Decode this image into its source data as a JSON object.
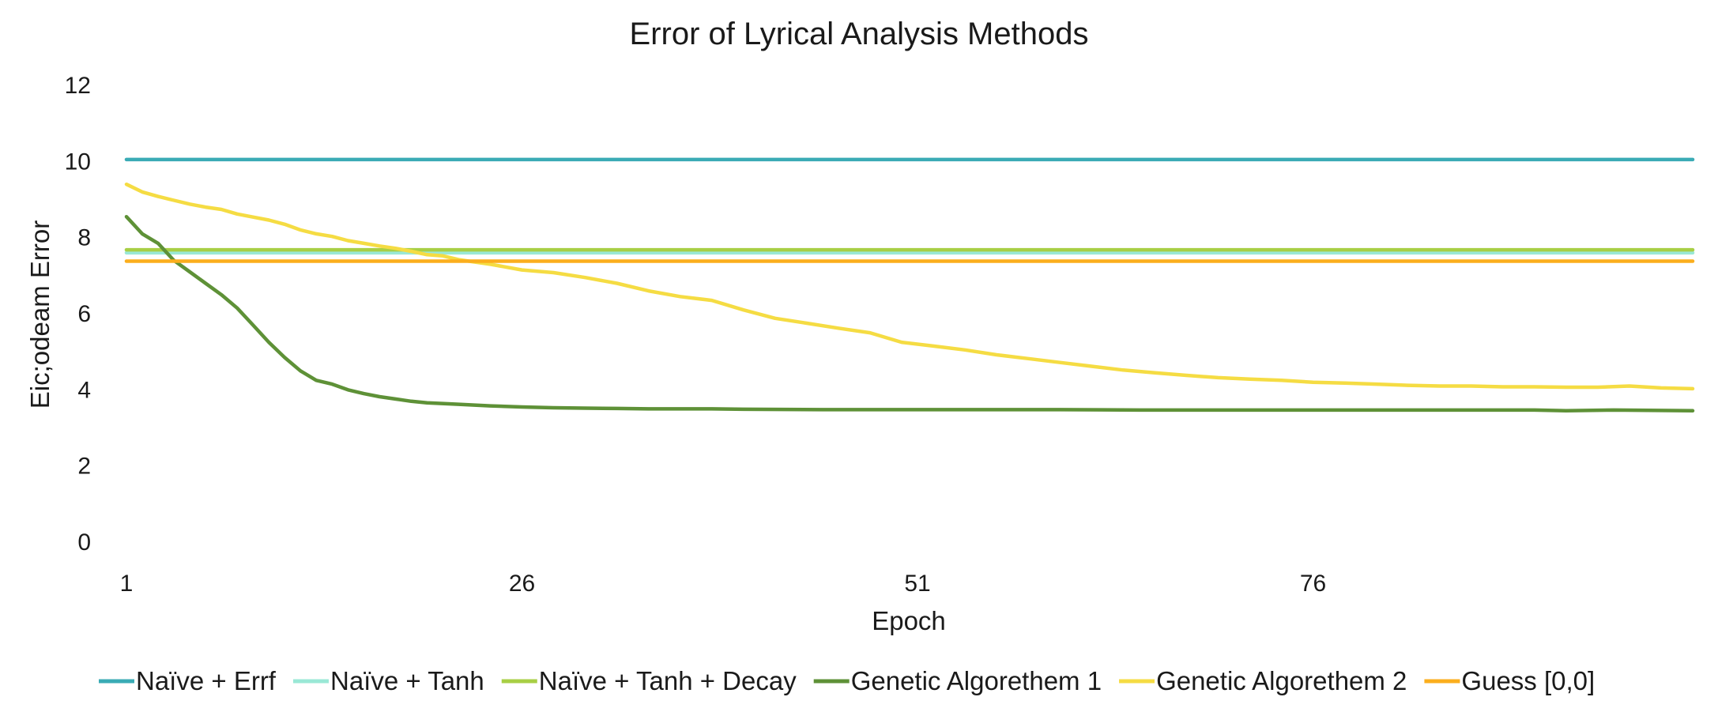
{
  "chart_data": {
    "type": "line",
    "title": "Error of Lyrical Analysis Methods",
    "xlabel": "Epoch",
    "ylabel": "Eic;odeam Error",
    "xlim": [
      1,
      100
    ],
    "ylim": [
      0,
      12
    ],
    "x_ticks": [
      1,
      26,
      51,
      76
    ],
    "y_ticks": [
      0,
      2,
      4,
      6,
      8,
      10,
      12
    ],
    "grid": false,
    "legend_position": "bottom",
    "series": [
      {
        "name": "Naïve + Errf",
        "color": "#3aabb5",
        "x": [
          1,
          100
        ],
        "y": [
          10.05,
          10.05
        ]
      },
      {
        "name": "Naïve + Tanh",
        "color": "#9ae8d6",
        "x": [
          1,
          100
        ],
        "y": [
          7.6,
          7.6
        ]
      },
      {
        "name": "Naïve + Tanh + Decay",
        "color": "#a8cf45",
        "x": [
          1,
          100
        ],
        "y": [
          7.68,
          7.68
        ]
      },
      {
        "name": "Genetic Algorethem 1",
        "color": "#5e9137",
        "x": [
          1,
          2,
          3,
          4,
          5,
          6,
          7,
          8,
          9,
          10,
          11,
          12,
          13,
          14,
          15,
          16,
          17,
          18,
          19,
          20,
          22,
          24,
          26,
          28,
          30,
          32,
          34,
          36,
          38,
          40,
          45,
          50,
          55,
          60,
          65,
          70,
          75,
          80,
          85,
          90,
          92,
          95,
          100
        ],
        "y": [
          8.55,
          8.1,
          7.85,
          7.4,
          7.1,
          6.8,
          6.5,
          6.15,
          5.7,
          5.25,
          4.85,
          4.5,
          4.25,
          4.15,
          4.0,
          3.9,
          3.82,
          3.76,
          3.7,
          3.66,
          3.62,
          3.58,
          3.55,
          3.53,
          3.52,
          3.51,
          3.5,
          3.5,
          3.5,
          3.49,
          3.48,
          3.48,
          3.48,
          3.48,
          3.47,
          3.47,
          3.47,
          3.47,
          3.47,
          3.47,
          3.45,
          3.47,
          3.45
        ]
      },
      {
        "name": "Genetic Algorethem 2",
        "color": "#f5dc43",
        "x": [
          1,
          2,
          3,
          4,
          5,
          6,
          7,
          8,
          9,
          10,
          11,
          12,
          13,
          14,
          15,
          16,
          17,
          18,
          19,
          20,
          21,
          22,
          24,
          26,
          28,
          30,
          32,
          34,
          36,
          38,
          40,
          42,
          44,
          46,
          48,
          50,
          52,
          54,
          56,
          58,
          60,
          62,
          64,
          66,
          68,
          70,
          72,
          74,
          76,
          78,
          80,
          82,
          84,
          86,
          88,
          90,
          92,
          94,
          96,
          98,
          100
        ],
        "y": [
          9.4,
          9.2,
          9.08,
          8.98,
          8.88,
          8.8,
          8.74,
          8.62,
          8.54,
          8.46,
          8.35,
          8.2,
          8.1,
          8.03,
          7.92,
          7.85,
          7.78,
          7.72,
          7.64,
          7.55,
          7.52,
          7.42,
          7.3,
          7.15,
          7.08,
          6.95,
          6.8,
          6.6,
          6.45,
          6.35,
          6.1,
          5.88,
          5.75,
          5.62,
          5.5,
          5.25,
          5.15,
          5.05,
          4.92,
          4.82,
          4.72,
          4.62,
          4.52,
          4.45,
          4.38,
          4.32,
          4.28,
          4.25,
          4.2,
          4.18,
          4.15,
          4.12,
          4.1,
          4.1,
          4.08,
          4.08,
          4.07,
          4.07,
          4.1,
          4.05,
          4.03
        ]
      },
      {
        "name": "Guess [0,0]",
        "color": "#fbae1d",
        "x": [
          1,
          100
        ],
        "y": [
          7.38,
          7.38
        ]
      }
    ]
  }
}
